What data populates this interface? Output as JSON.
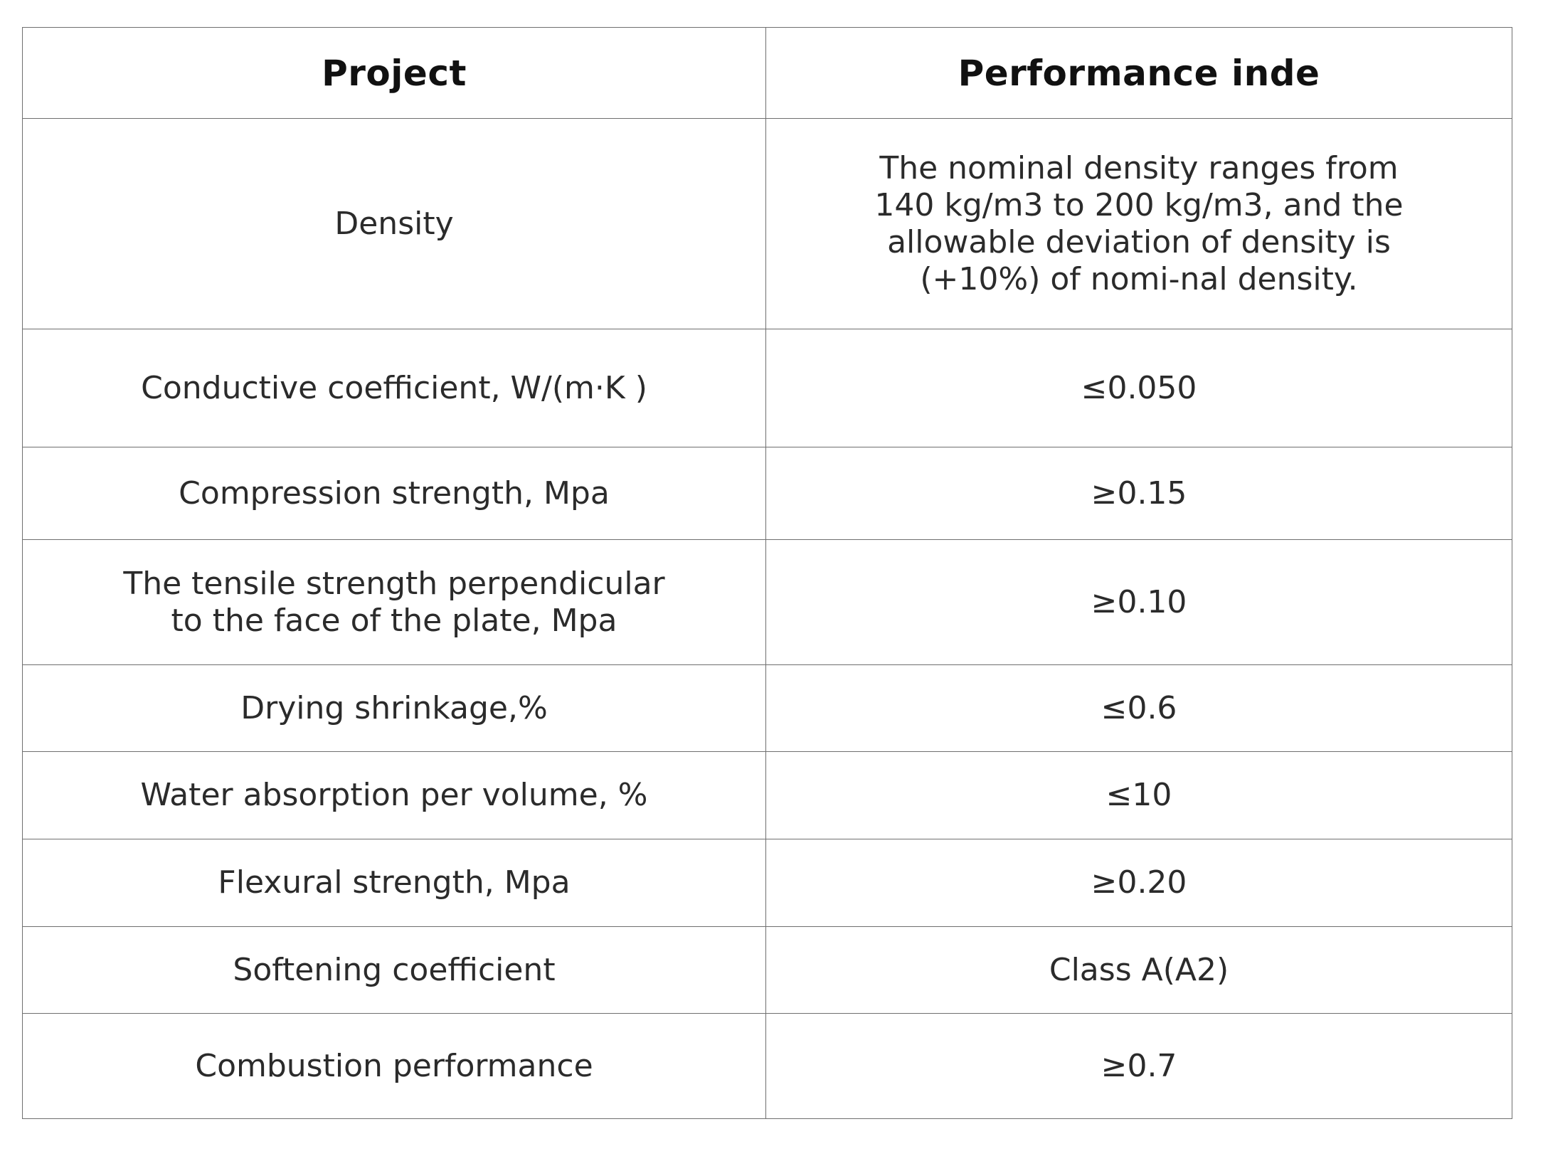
{
  "table": {
    "headers": [
      "Project",
      "Performance inde"
    ],
    "rows": [
      {
        "project": "Density",
        "value": "The nominal density ranges from 140 kg/m3 to 200 kg/m3, and the allowable deviation of density is (+10%) of nomi-nal density."
      },
      {
        "project": "Conductive coefficient, W/(m·K )",
        "value": "≤0.050"
      },
      {
        "project": "Compression strength, Mpa",
        "value": "≥0.15"
      },
      {
        "project": "The tensile strength perpendicular to the face of the plate, Mpa",
        "value": "≥0.10"
      },
      {
        "project": "Drying shrinkage,%",
        "value": "≤0.6"
      },
      {
        "project": "Water absorption per volume, %",
        "value": "≤10"
      },
      {
        "project": "Flexural strength, Mpa",
        "value": "≥0.20"
      },
      {
        "project": "Softening coefficient",
        "value": "Class A(A2)"
      },
      {
        "project": "Combustion performance",
        "value": "≥0.7"
      }
    ]
  }
}
